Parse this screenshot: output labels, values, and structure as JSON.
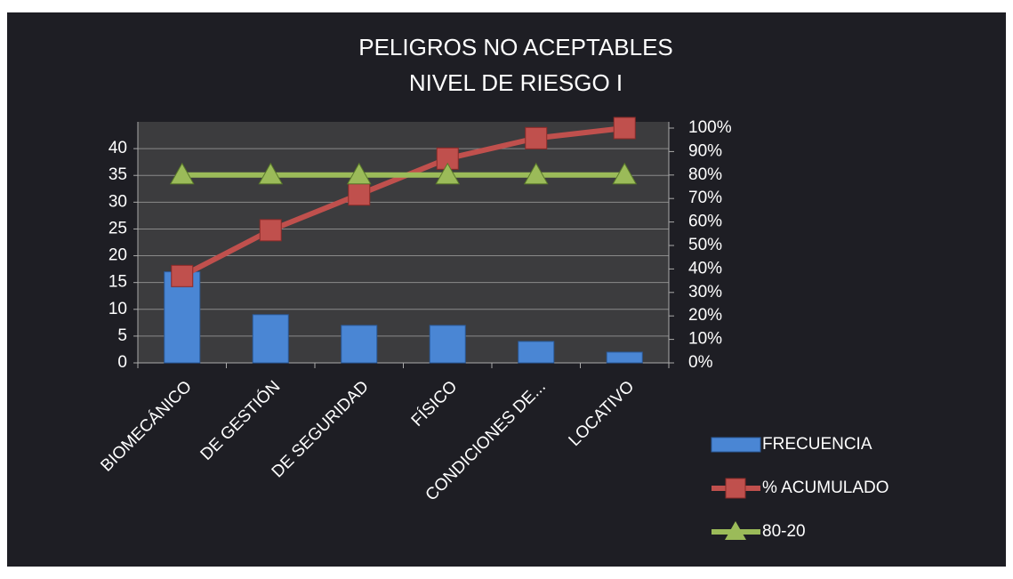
{
  "chart_data": {
    "type": "pareto",
    "title": "PELIGROS NO ACEPTABLES",
    "subtitle": "NIVEL DE RIESGO I",
    "categories": [
      "BIOMECÁNICO",
      "DE GESTIÓN",
      "DE SEGURIDAD",
      "FÍSICO",
      "CONDICIONES DE...",
      "LOCATIVO"
    ],
    "series": [
      {
        "name": "FRECUENCIA",
        "kind": "bar",
        "color": "#4a86d4",
        "values": [
          17,
          9,
          7,
          7,
          4,
          2
        ]
      },
      {
        "name": "% ACUMULADO",
        "kind": "line",
        "marker": "square",
        "axis": "y2",
        "color": "#c0504d",
        "values": [
          37,
          56.5,
          71.7,
          87,
          95.7,
          100
        ]
      },
      {
        "name": "80-20",
        "kind": "line",
        "marker": "triangle",
        "axis": "y2",
        "color": "#9bbb59",
        "values": [
          80,
          80,
          80,
          80,
          80,
          80
        ]
      }
    ],
    "ylim": [
      0,
      45
    ],
    "yticks": [
      0,
      5,
      10,
      15,
      20,
      25,
      30,
      35,
      40
    ],
    "y2lim": [
      0,
      100
    ],
    "y2ticks": [
      {
        "value": 0,
        "label": "0%"
      },
      {
        "value": 10,
        "label": "10%"
      },
      {
        "value": 20,
        "label": "20%"
      },
      {
        "value": 30,
        "label": "30%"
      },
      {
        "value": 40,
        "label": "40%"
      },
      {
        "value": 50,
        "label": "50%"
      },
      {
        "value": 60,
        "label": "60%"
      },
      {
        "value": 70,
        "label": "70%"
      },
      {
        "value": 80,
        "label": "80%"
      },
      {
        "value": 90,
        "label": "90%"
      },
      {
        "value": 100,
        "label": "100%"
      }
    ],
    "grid": true,
    "legend": "bottom-right"
  }
}
